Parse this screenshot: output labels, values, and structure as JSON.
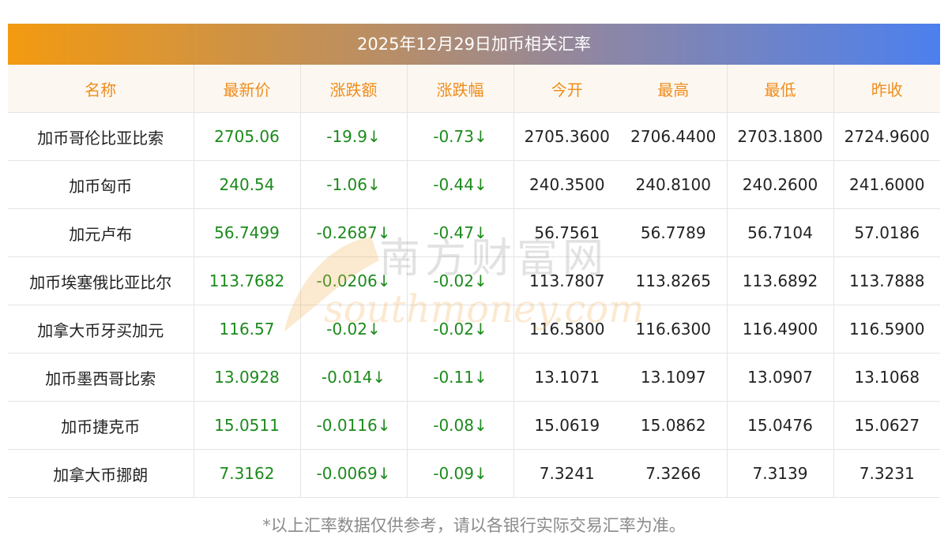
{
  "title": "2025年12月29日加币相关汇率",
  "headers": [
    "名称",
    "最新价",
    "涨跌额",
    "涨跌幅",
    "今开",
    "最高",
    "最低",
    "昨收"
  ],
  "rows": [
    {
      "name": "加币哥伦比亚比索",
      "latest": "2705.06",
      "change": "-19.9↓",
      "pct": "-0.73↓",
      "open": "2705.3600",
      "high": "2706.4400",
      "low": "2703.1800",
      "prev": "2724.9600"
    },
    {
      "name": "加币匈币",
      "latest": "240.54",
      "change": "-1.06↓",
      "pct": "-0.44↓",
      "open": "240.3500",
      "high": "240.8100",
      "low": "240.2600",
      "prev": "241.6000"
    },
    {
      "name": "加元卢布",
      "latest": "56.7499",
      "change": "-0.2687↓",
      "pct": "-0.47↓",
      "open": "56.7561",
      "high": "56.7789",
      "low": "56.7104",
      "prev": "57.0186"
    },
    {
      "name": "加币埃塞俄比亚比尔",
      "latest": "113.7682",
      "change": "-0.0206↓",
      "pct": "-0.02↓",
      "open": "113.7807",
      "high": "113.8265",
      "low": "113.6892",
      "prev": "113.7888"
    },
    {
      "name": "加拿大币牙买加元",
      "latest": "116.57",
      "change": "-0.02↓",
      "pct": "-0.02↓",
      "open": "116.5800",
      "high": "116.6300",
      "low": "116.4900",
      "prev": "116.5900"
    },
    {
      "name": "加币墨西哥比索",
      "latest": "13.0928",
      "change": "-0.014↓",
      "pct": "-0.11↓",
      "open": "13.1071",
      "high": "13.1097",
      "low": "13.0907",
      "prev": "13.1068"
    },
    {
      "name": "加币捷克币",
      "latest": "15.0511",
      "change": "-0.0116↓",
      "pct": "-0.08↓",
      "open": "15.0619",
      "high": "15.0862",
      "low": "15.0476",
      "prev": "15.0627"
    },
    {
      "name": "加拿大币挪朗",
      "latest": "7.3162",
      "change": "-0.0069↓",
      "pct": "-0.09↓",
      "open": "7.3241",
      "high": "7.3266",
      "low": "7.3139",
      "prev": "7.3231"
    }
  ],
  "watermark": {
    "cn": "南方财富网",
    "en": "southmoney.com"
  },
  "footnote": "*以上汇率数据仅供参考，请以各银行实际交易汇率为准。",
  "colors": {
    "header_text": "#ef8c1c",
    "positive_value": "#1c8a1c",
    "gradient_start": "#f39a10",
    "gradient_end": "#4c80ee"
  }
}
